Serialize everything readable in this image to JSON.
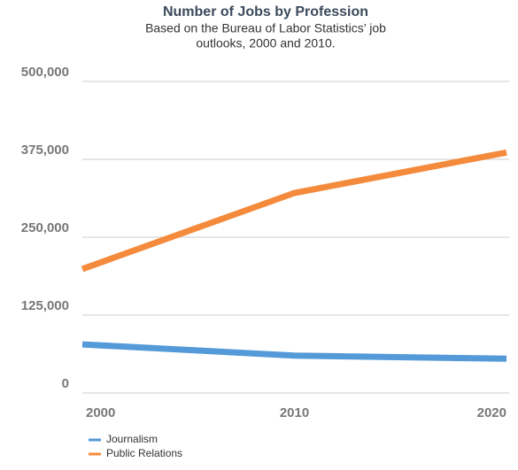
{
  "chart_data": {
    "type": "line",
    "title": "Number of Jobs by Profession",
    "subtitle": [
      "Based on the Bureau of Labor Statistics’ job",
      "outlooks, 2000 and 2010."
    ],
    "x": [
      2000,
      2010,
      2020
    ],
    "xlim": [
      2000,
      2020
    ],
    "xticks": [
      2000,
      2010,
      2020
    ],
    "series": [
      {
        "name": "Journalism",
        "color": "#5499d8",
        "values": [
          78000,
          60000,
          55000
        ]
      },
      {
        "name": "Public Relations",
        "color": "#f48a3c",
        "values": [
          199000,
          321000,
          386000
        ]
      }
    ],
    "ylim": [
      0,
      500000
    ],
    "yticks": [
      0,
      {
        "value": 125000,
        "label": "125,000"
      },
      {
        "value": 250000,
        "label": "250,000"
      },
      {
        "value": 375000,
        "label": "375,000"
      },
      {
        "value": 500000,
        "label": "500,000"
      }
    ],
    "grid": true,
    "legend": "bottom-left"
  }
}
